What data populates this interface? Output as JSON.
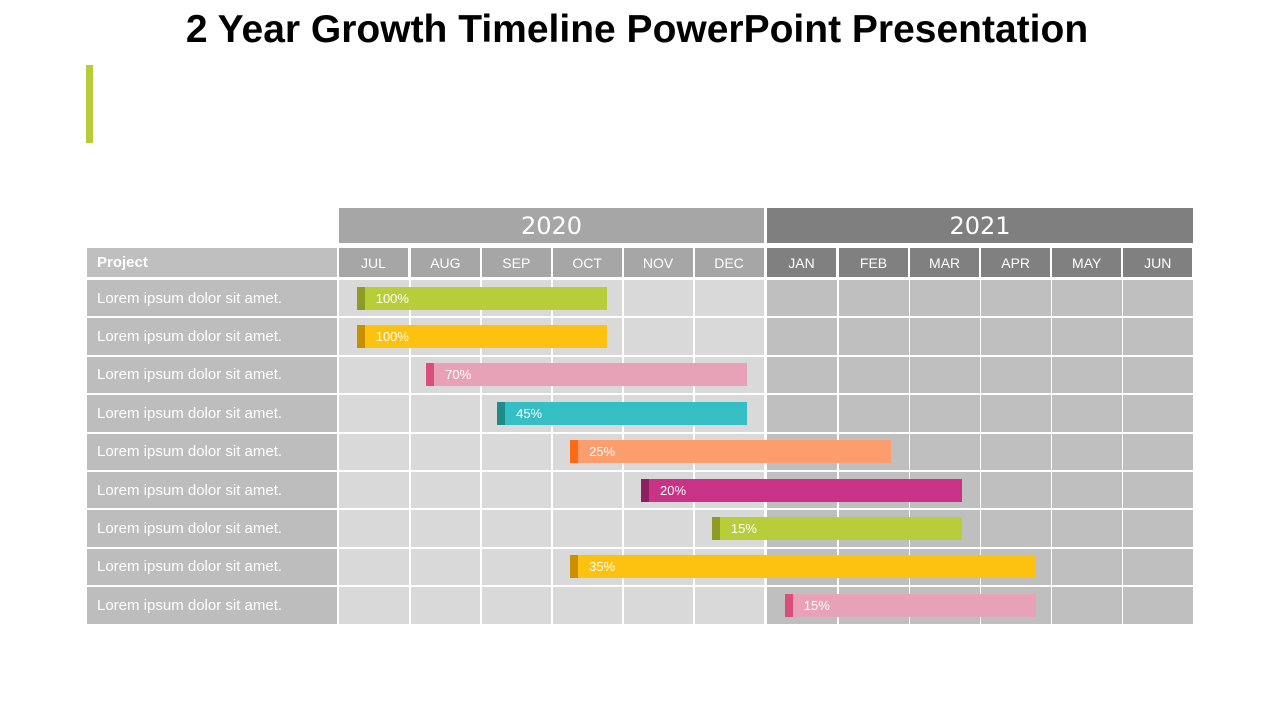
{
  "title": "2 Year Growth Timeline PowerPoint Presentation",
  "header": {
    "project_label": "Project",
    "years": [
      "2020",
      "2021"
    ],
    "months": [
      "JUL",
      "AUG",
      "SEP",
      "OCT",
      "NOV",
      "DEC",
      "JAN",
      "FEB",
      "MAR",
      "APR",
      "MAY",
      "JUN"
    ]
  },
  "rows": [
    {
      "label": "Lorem ipsum dolor sit amet.",
      "percent": "100%",
      "start": 0.25,
      "end": 3.78,
      "color": "#b8cd3a",
      "cap": "#8c9c24"
    },
    {
      "label": "Lorem ipsum dolor sit amet.",
      "percent": "100%",
      "start": 0.25,
      "end": 3.78,
      "color": "#fdc110",
      "cap": "#c98f00"
    },
    {
      "label": "Lorem ipsum dolor sit amet.",
      "percent": "70%",
      "start": 1.23,
      "end": 5.75,
      "color": "#e8a2b8",
      "cap": "#d94f7a"
    },
    {
      "label": "Lorem ipsum dolor sit amet.",
      "percent": "45%",
      "start": 2.23,
      "end": 5.75,
      "color": "#35bfc4",
      "cap": "#1f8c8a"
    },
    {
      "label": "Lorem ipsum dolor sit amet.",
      "percent": "25%",
      "start": 3.26,
      "end": 7.75,
      "color": "#fd9c6c",
      "cap": "#fd6a14"
    },
    {
      "label": "Lorem ipsum dolor sit amet.",
      "percent": "20%",
      "start": 4.26,
      "end": 8.75,
      "color": "#c93287",
      "cap": "#8d2060"
    },
    {
      "label": "Lorem ipsum dolor sit amet.",
      "percent": "15%",
      "start": 5.26,
      "end": 8.75,
      "color": "#b8cd3a",
      "cap": "#8c9c24"
    },
    {
      "label": "Lorem ipsum dolor sit amet.",
      "percent": "35%",
      "start": 3.26,
      "end": 9.78,
      "color": "#fdc110",
      "cap": "#c98f00"
    },
    {
      "label": "Lorem ipsum dolor sit amet.",
      "percent": "15%",
      "start": 6.25,
      "end": 9.78,
      "color": "#e8a2b8",
      "cap": "#d94f7a"
    }
  ]
}
